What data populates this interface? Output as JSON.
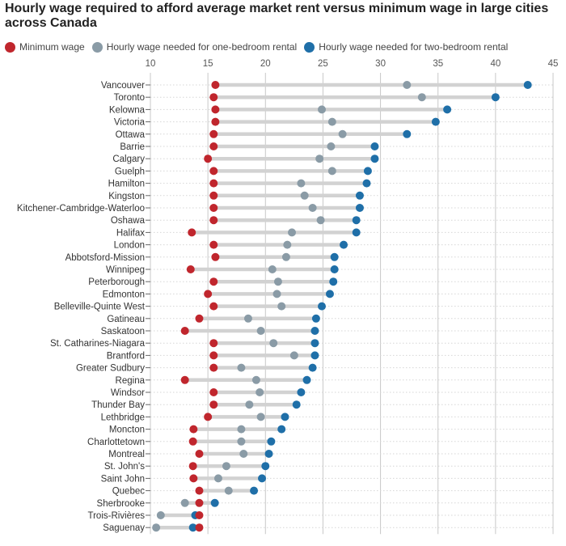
{
  "chart_data": {
    "type": "dot-range",
    "title": "Hourly wage required to afford average market rent versus minimum wage in large cities across Canada",
    "xlim": [
      10,
      45
    ],
    "x_ticks": [
      "10",
      "15",
      "20",
      "25",
      "30",
      "35",
      "40",
      "45"
    ],
    "grid": true,
    "legend_position": "top-left",
    "series": [
      {
        "key": "min_wage",
        "name": "Minimum wage",
        "color": "#c0262d"
      },
      {
        "key": "one_bedroom",
        "name": "Hourly wage needed for one-bedroom rental",
        "color": "#8a9ba6"
      },
      {
        "key": "two_bedroom",
        "name": "Hourly wage needed for two-bedroom rental",
        "color": "#1f6fa8"
      }
    ],
    "cities": [
      {
        "city": "Vancouver",
        "min_wage": 15.65,
        "one_bedroom": 32.3,
        "two_bedroom": 42.8
      },
      {
        "city": "Toronto",
        "min_wage": 15.5,
        "one_bedroom": 33.6,
        "two_bedroom": 40.0
      },
      {
        "city": "Kelowna",
        "min_wage": 15.65,
        "one_bedroom": 24.9,
        "two_bedroom": 35.8
      },
      {
        "city": "Victoria",
        "min_wage": 15.65,
        "one_bedroom": 25.8,
        "two_bedroom": 34.8
      },
      {
        "city": "Ottawa",
        "min_wage": 15.5,
        "one_bedroom": 26.7,
        "two_bedroom": 32.3
      },
      {
        "city": "Barrie",
        "min_wage": 15.5,
        "one_bedroom": 25.7,
        "two_bedroom": 29.5
      },
      {
        "city": "Calgary",
        "min_wage": 15.0,
        "one_bedroom": 24.7,
        "two_bedroom": 29.5
      },
      {
        "city": "Guelph",
        "min_wage": 15.5,
        "one_bedroom": 25.8,
        "two_bedroom": 28.9
      },
      {
        "city": "Hamilton",
        "min_wage": 15.5,
        "one_bedroom": 23.1,
        "two_bedroom": 28.8
      },
      {
        "city": "Kingston",
        "min_wage": 15.5,
        "one_bedroom": 23.4,
        "two_bedroom": 28.2
      },
      {
        "city": "Kitchener-Cambridge-Waterloo",
        "min_wage": 15.5,
        "one_bedroom": 24.1,
        "two_bedroom": 28.2
      },
      {
        "city": "Oshawa",
        "min_wage": 15.5,
        "one_bedroom": 24.8,
        "two_bedroom": 27.9
      },
      {
        "city": "Halifax",
        "min_wage": 13.6,
        "one_bedroom": 22.3,
        "two_bedroom": 27.9
      },
      {
        "city": "London",
        "min_wage": 15.5,
        "one_bedroom": 21.9,
        "two_bedroom": 26.8
      },
      {
        "city": "Abbotsford-Mission",
        "min_wage": 15.65,
        "one_bedroom": 21.8,
        "two_bedroom": 26.0
      },
      {
        "city": "Winnipeg",
        "min_wage": 13.5,
        "one_bedroom": 20.6,
        "two_bedroom": 26.0
      },
      {
        "city": "Peterborough",
        "min_wage": 15.5,
        "one_bedroom": 21.1,
        "two_bedroom": 25.9
      },
      {
        "city": "Edmonton",
        "min_wage": 15.0,
        "one_bedroom": 21.0,
        "two_bedroom": 25.6
      },
      {
        "city": "Belleville-Quinte West",
        "min_wage": 15.5,
        "one_bedroom": 21.4,
        "two_bedroom": 24.9
      },
      {
        "city": "Gatineau",
        "min_wage": 14.25,
        "one_bedroom": 18.5,
        "two_bedroom": 24.4
      },
      {
        "city": "Saskatoon",
        "min_wage": 13.0,
        "one_bedroom": 19.6,
        "two_bedroom": 24.3
      },
      {
        "city": "St. Catharines-Niagara",
        "min_wage": 15.5,
        "one_bedroom": 20.7,
        "two_bedroom": 24.3
      },
      {
        "city": "Brantford",
        "min_wage": 15.5,
        "one_bedroom": 22.5,
        "two_bedroom": 24.3
      },
      {
        "city": "Greater Sudbury",
        "min_wage": 15.5,
        "one_bedroom": 17.9,
        "two_bedroom": 24.1
      },
      {
        "city": "Regina",
        "min_wage": 13.0,
        "one_bedroom": 19.2,
        "two_bedroom": 23.6
      },
      {
        "city": "Windsor",
        "min_wage": 15.5,
        "one_bedroom": 19.5,
        "two_bedroom": 23.1
      },
      {
        "city": "Thunder Bay",
        "min_wage": 15.5,
        "one_bedroom": 18.6,
        "two_bedroom": 22.7
      },
      {
        "city": "Lethbridge",
        "min_wage": 15.0,
        "one_bedroom": 19.6,
        "two_bedroom": 21.7
      },
      {
        "city": "Moncton",
        "min_wage": 13.75,
        "one_bedroom": 17.9,
        "two_bedroom": 21.4
      },
      {
        "city": "Charlottetown",
        "min_wage": 13.7,
        "one_bedroom": 17.9,
        "two_bedroom": 20.5
      },
      {
        "city": "Montreal",
        "min_wage": 14.25,
        "one_bedroom": 18.1,
        "two_bedroom": 20.3
      },
      {
        "city": "St. John's",
        "min_wage": 13.7,
        "one_bedroom": 16.6,
        "two_bedroom": 20.0
      },
      {
        "city": "Saint John",
        "min_wage": 13.75,
        "one_bedroom": 15.9,
        "two_bedroom": 19.7
      },
      {
        "city": "Quebec",
        "min_wage": 14.25,
        "one_bedroom": 16.8,
        "two_bedroom": 19.0
      },
      {
        "city": "Sherbrooke",
        "min_wage": 14.25,
        "one_bedroom": 13.0,
        "two_bedroom": 15.6
      },
      {
        "city": "Trois-Rivières",
        "min_wage": 14.25,
        "one_bedroom": 10.9,
        "two_bedroom": 13.9
      },
      {
        "city": "Saguenay",
        "min_wage": 14.25,
        "one_bedroom": 10.5,
        "two_bedroom": 13.7
      }
    ]
  }
}
